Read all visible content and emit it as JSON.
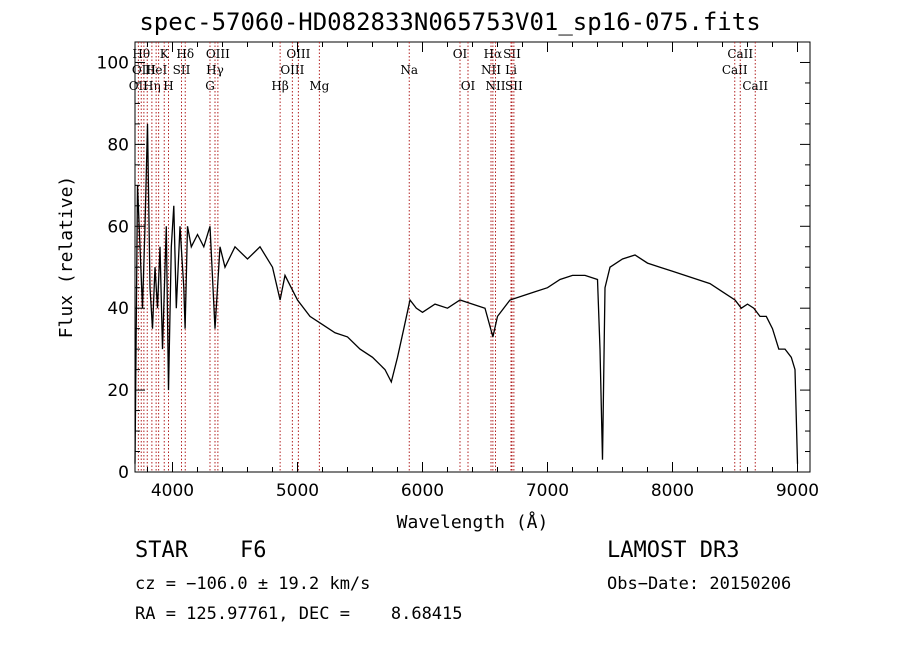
{
  "chart_data": {
    "type": "line",
    "title": "spec-57060-HD082833N065753V01_sp16-075.fits",
    "xlabel": "Wavelength (Å)",
    "ylabel": "Flux (relative)",
    "xlim": [
      3700,
      9100
    ],
    "ylim": [
      0,
      105
    ],
    "xticks": [
      4000,
      5000,
      6000,
      7000,
      8000,
      9000
    ],
    "yticks": [
      0,
      20,
      40,
      60,
      80,
      100
    ],
    "grid": false,
    "series": [
      {
        "line_color": "#000000",
        "x": [
          3700,
          3720,
          3740,
          3760,
          3780,
          3800,
          3820,
          3840,
          3860,
          3880,
          3900,
          3920,
          3935,
          3950,
          3968,
          3990,
          4010,
          4030,
          4060,
          4090,
          4101,
          4120,
          4150,
          4200,
          4250,
          4300,
          4340,
          4380,
          4420,
          4500,
          4600,
          4700,
          4800,
          4861,
          4900,
          5000,
          5100,
          5200,
          5300,
          5400,
          5500,
          5600,
          5700,
          5750,
          5800,
          5850,
          5900,
          5950,
          6000,
          6100,
          6200,
          6300,
          6400,
          6500,
          6563,
          6600,
          6700,
          6800,
          6900,
          7000,
          7100,
          7200,
          7300,
          7400,
          7420,
          7440,
          7460,
          7500,
          7600,
          7700,
          7800,
          7900,
          8000,
          8100,
          8200,
          8300,
          8400,
          8500,
          8550,
          8600,
          8650,
          8700,
          8750,
          8800,
          8850,
          8900,
          8950,
          8980,
          9000
        ],
        "values": [
          2,
          70,
          55,
          40,
          60,
          85,
          45,
          35,
          50,
          40,
          55,
          30,
          45,
          60,
          20,
          55,
          65,
          40,
          60,
          45,
          35,
          60,
          55,
          58,
          55,
          60,
          35,
          55,
          50,
          55,
          52,
          55,
          50,
          42,
          48,
          42,
          38,
          36,
          34,
          33,
          30,
          28,
          25,
          22,
          28,
          35,
          42,
          40,
          39,
          41,
          40,
          42,
          41,
          40,
          33,
          38,
          42,
          43,
          44,
          45,
          47,
          48,
          48,
          47,
          30,
          3,
          45,
          50,
          52,
          53,
          51,
          50,
          49,
          48,
          47,
          46,
          44,
          42,
          40,
          41,
          40,
          38,
          38,
          35,
          30,
          30,
          28,
          25,
          2
        ]
      }
    ],
    "lines": [
      {
        "x": 3727,
        "label": "OII",
        "row": 2
      },
      {
        "x": 3750,
        "label": "Hθ",
        "row": 0
      },
      {
        "x": 3771,
        "label": "OIII",
        "row": 1
      },
      {
        "x": 3798,
        "label": "",
        "row": 0
      },
      {
        "x": 3835,
        "label": "Hη",
        "row": 2
      },
      {
        "x": 3869,
        "label": "HeI",
        "row": 1
      },
      {
        "x": 3889,
        "label": "",
        "row": 2
      },
      {
        "x": 3934,
        "label": "K",
        "row": 0
      },
      {
        "x": 3968,
        "label": "H",
        "row": 2
      },
      {
        "x": 4072,
        "label": "SII",
        "row": 1
      },
      {
        "x": 4102,
        "label": "Hδ",
        "row": 0
      },
      {
        "x": 4300,
        "label": "G",
        "row": 2
      },
      {
        "x": 4340,
        "label": "Hγ",
        "row": 1
      },
      {
        "x": 4363,
        "label": "OIII",
        "row": 0
      },
      {
        "x": 4861,
        "label": "Hβ",
        "row": 2
      },
      {
        "x": 4959,
        "label": "OIII",
        "row": 1
      },
      {
        "x": 5007,
        "label": "OIII",
        "row": 0
      },
      {
        "x": 5175,
        "label": "Mg",
        "row": 2
      },
      {
        "x": 5894,
        "label": "Na",
        "row": 1
      },
      {
        "x": 6300,
        "label": "OI",
        "row": 0
      },
      {
        "x": 6364,
        "label": "OI",
        "row": 2
      },
      {
        "x": 6548,
        "label": "NII",
        "row": 1
      },
      {
        "x": 6563,
        "label": "Hα",
        "row": 0
      },
      {
        "x": 6584,
        "label": "NII",
        "row": 2
      },
      {
        "x": 6708,
        "label": "Li",
        "row": 1
      },
      {
        "x": 6716,
        "label": "SII",
        "row": 0
      },
      {
        "x": 6731,
        "label": "SII",
        "row": 2
      },
      {
        "x": 8498,
        "label": "CaII",
        "row": 1
      },
      {
        "x": 8542,
        "label": "CaII",
        "row": 0
      },
      {
        "x": 8662,
        "label": "CaII",
        "row": 2
      }
    ]
  },
  "info": {
    "class_label": "STAR",
    "subclass": "F6",
    "survey": "LAMOST DR3",
    "cz": "cz = −106.0 ± 19.2 km/s",
    "obs_date": "Obs−Date: 20150206",
    "coords": "RA = 125.97761, DEC =    8.68415"
  }
}
